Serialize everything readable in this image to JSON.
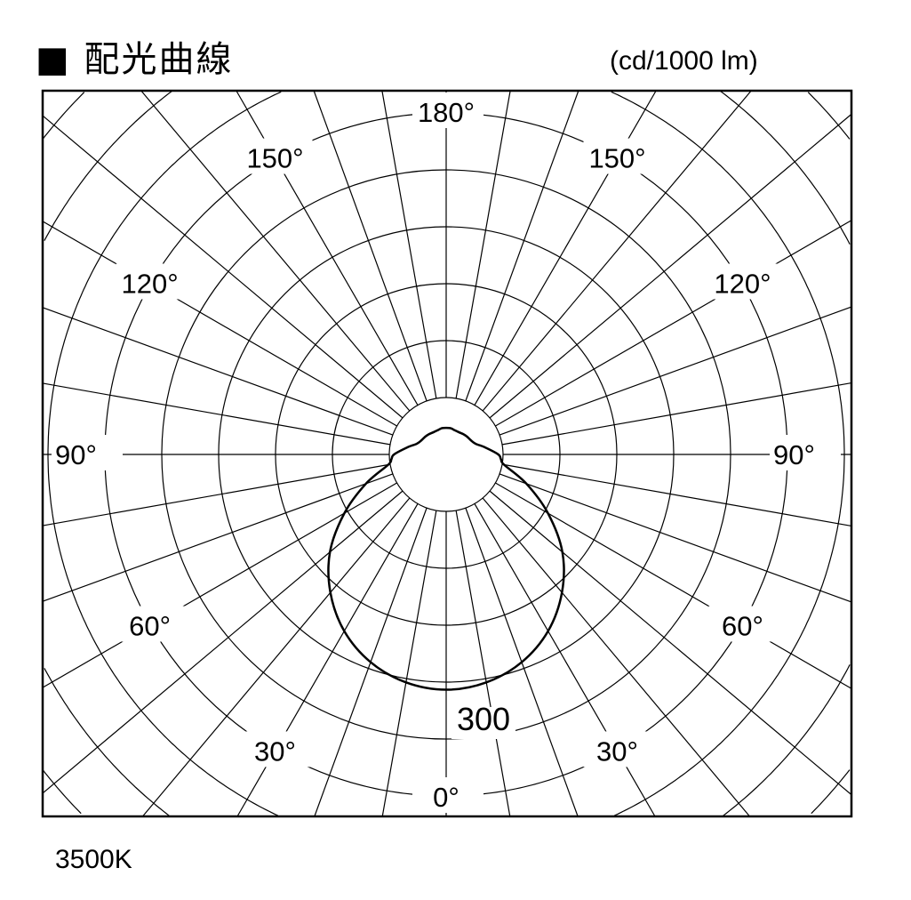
{
  "title": "■ 配光曲線",
  "unit_label": "(cd/1000 lm)",
  "footnote": "3500K",
  "chart_data": {
    "type": "polar-line",
    "title": "配光曲線",
    "unit": "cd/1000 lm",
    "angle_labels": [
      "0°",
      "30°",
      "60°",
      "90°",
      "120°",
      "150°",
      "180°"
    ],
    "angle_label_values": [
      0,
      30,
      60,
      90,
      120,
      150,
      180
    ],
    "radial_tick_label": "300",
    "radial_tick_value": 300,
    "ring_step": 60,
    "radial_line_step_deg": 10,
    "grid": true,
    "series": [
      {
        "angles": [
          0,
          10,
          20,
          30,
          40,
          50,
          60,
          70,
          80,
          85,
          90,
          100,
          110,
          120,
          130,
          140,
          150,
          160,
          170,
          180
        ],
        "values": [
          248,
          244,
          233,
          215,
          190,
          160,
          124,
          90,
          62,
          58,
          55,
          42,
          33,
          30,
          29,
          28,
          27,
          27,
          28,
          28
        ],
        "symmetric": true,
        "color": "#000000"
      }
    ]
  }
}
